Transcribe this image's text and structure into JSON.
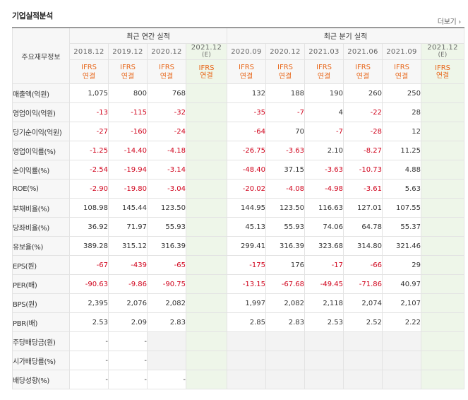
{
  "section_title": "기업실적분석",
  "more_link": "더보기",
  "table": {
    "row_header": "주요재무정보",
    "annual_group": "최근 연간 실적",
    "quarter_group": "최근 분기 실적",
    "annual_periods": [
      "2018.12",
      "2019.12",
      "2020.12",
      "2021.12"
    ],
    "annual_est": "(E)",
    "quarter_periods": [
      "2020.09",
      "2020.12",
      "2021.03",
      "2021.06",
      "2021.09",
      "2021.12"
    ],
    "quarter_est": "(E)",
    "ifrs_line1": "IFRS",
    "ifrs_line2": "연결",
    "rows": [
      {
        "label": "매출액(억원)",
        "annual": [
          "1,075",
          "800",
          "768",
          ""
        ],
        "quarter": [
          "132",
          "188",
          "190",
          "260",
          "250",
          ""
        ]
      },
      {
        "label": "영업이익(억원)",
        "annual": [
          "-13",
          "-115",
          "-32",
          ""
        ],
        "quarter": [
          "-35",
          "-7",
          "4",
          "-22",
          "28",
          ""
        ]
      },
      {
        "label": "당기순이익(억원)",
        "annual": [
          "-27",
          "-160",
          "-24",
          ""
        ],
        "quarter": [
          "-64",
          "70",
          "-7",
          "-28",
          "12",
          ""
        ]
      },
      {
        "label": "영업이익률(%)",
        "annual": [
          "-1.25",
          "-14.40",
          "-4.18",
          ""
        ],
        "quarter": [
          "-26.75",
          "-3.63",
          "2.10",
          "-8.27",
          "11.25",
          ""
        ]
      },
      {
        "label": "순이익률(%)",
        "annual": [
          "-2.54",
          "-19.94",
          "-3.14",
          ""
        ],
        "quarter": [
          "-48.40",
          "37.15",
          "-3.63",
          "-10.73",
          "4.88",
          ""
        ]
      },
      {
        "label": "ROE(%)",
        "annual": [
          "-2.90",
          "-19.80",
          "-3.04",
          ""
        ],
        "quarter": [
          "-20.02",
          "-4.08",
          "-4.98",
          "-3.61",
          "5.63",
          ""
        ]
      },
      {
        "label": "부채비율(%)",
        "annual": [
          "108.98",
          "145.44",
          "123.50",
          ""
        ],
        "quarter": [
          "144.95",
          "123.50",
          "116.63",
          "127.01",
          "107.55",
          ""
        ]
      },
      {
        "label": "당좌비율(%)",
        "annual": [
          "36.92",
          "71.97",
          "55.93",
          ""
        ],
        "quarter": [
          "45.13",
          "55.93",
          "74.06",
          "64.78",
          "55.37",
          ""
        ]
      },
      {
        "label": "유보율(%)",
        "annual": [
          "389.28",
          "315.12",
          "316.39",
          ""
        ],
        "quarter": [
          "299.41",
          "316.39",
          "323.68",
          "314.80",
          "321.46",
          ""
        ]
      },
      {
        "label": "EPS(원)",
        "annual": [
          "-67",
          "-439",
          "-65",
          ""
        ],
        "quarter": [
          "-175",
          "176",
          "-17",
          "-66",
          "29",
          ""
        ]
      },
      {
        "label": "PER(배)",
        "annual": [
          "-90.63",
          "-9.86",
          "-90.75",
          ""
        ],
        "quarter": [
          "-13.15",
          "-67.68",
          "-49.45",
          "-71.86",
          "40.97",
          ""
        ]
      },
      {
        "label": "BPS(원)",
        "annual": [
          "2,395",
          "2,076",
          "2,082",
          ""
        ],
        "quarter": [
          "1,997",
          "2,082",
          "2,118",
          "2,074",
          "2,107",
          ""
        ]
      },
      {
        "label": "PBR(배)",
        "annual": [
          "2.53",
          "2.09",
          "2.83",
          ""
        ],
        "quarter": [
          "2.85",
          "2.83",
          "2.53",
          "2.52",
          "2.22",
          ""
        ]
      },
      {
        "label": "주당배당금(원)",
        "annual": [
          "-",
          "-",
          "",
          ""
        ],
        "quarter": [
          "",
          "",
          "",
          "",
          "",
          ""
        ],
        "gray": true
      },
      {
        "label": "시가배당률(%)",
        "annual": [
          "-",
          "-",
          "",
          ""
        ],
        "quarter": [
          "",
          "",
          "",
          "",
          "",
          ""
        ],
        "gray": true
      },
      {
        "label": "배당성향(%)",
        "annual": [
          "-",
          "-",
          "-",
          ""
        ],
        "quarter": [
          "",
          "",
          "",
          "",
          "",
          ""
        ],
        "gray": true
      }
    ]
  }
}
